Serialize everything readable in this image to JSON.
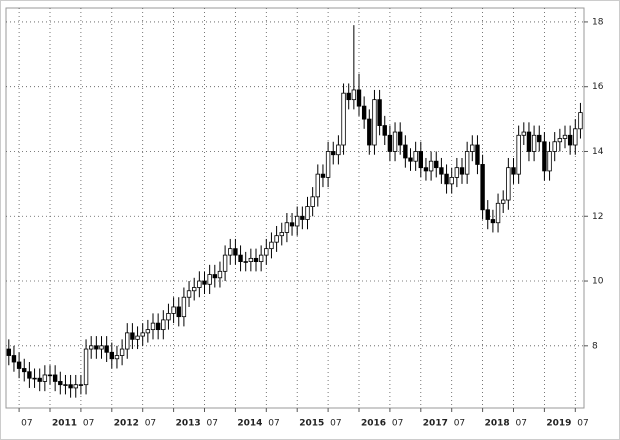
{
  "chart_data": {
    "type": "candlestick",
    "categories": [
      null,
      null,
      "07",
      null,
      null,
      null,
      null,
      null,
      "2011",
      null,
      null,
      null,
      null,
      null,
      "07",
      null,
      null,
      null,
      null,
      null,
      "2012",
      null,
      null,
      null,
      null,
      null,
      "07",
      null,
      null,
      null,
      null,
      null,
      "2013",
      null,
      null,
      null,
      null,
      null,
      "07",
      null,
      null,
      null,
      null,
      null,
      "2014",
      null,
      null,
      null,
      null,
      null,
      "07",
      null,
      null,
      null,
      null,
      null,
      "2015",
      null,
      null,
      null,
      null,
      null,
      "07",
      null,
      null,
      null,
      null,
      null,
      "2016",
      null,
      null,
      null,
      null,
      null,
      "07",
      null,
      null,
      null,
      null,
      null,
      "2017",
      null,
      null,
      null,
      null,
      null,
      "07",
      null,
      null,
      null,
      null,
      null,
      "2018",
      null,
      null,
      null,
      null,
      null,
      "07",
      null,
      null,
      null,
      null,
      null,
      "2019",
      null,
      null,
      null,
      null,
      null,
      "07",
      null
    ],
    "open": [
      7.9,
      7.7,
      7.5,
      7.3,
      7.2,
      7.0,
      7.0,
      6.9,
      7.1,
      7.1,
      6.9,
      6.8,
      6.8,
      6.7,
      6.8,
      6.8,
      7.9,
      8.0,
      7.9,
      8.0,
      7.8,
      7.6,
      7.7,
      7.9,
      8.4,
      8.2,
      8.3,
      8.4,
      8.5,
      8.7,
      8.5,
      8.8,
      9.0,
      9.2,
      8.9,
      9.5,
      9.7,
      9.8,
      10.0,
      9.9,
      10.2,
      10.1,
      10.3,
      10.8,
      11.0,
      10.8,
      10.6,
      10.6,
      10.7,
      10.6,
      10.8,
      11.0,
      11.2,
      11.4,
      11.5,
      11.8,
      11.7,
      12.0,
      11.9,
      12.3,
      12.6,
      13.3,
      13.2,
      14.0,
      13.9,
      14.2,
      15.8,
      15.6,
      15.9,
      15.4,
      15.0,
      14.2,
      15.6,
      14.8,
      14.5,
      14.0,
      14.6,
      14.2,
      13.8,
      13.7,
      14.0,
      13.5,
      13.4,
      13.7,
      13.5,
      13.3,
      13.0,
      13.2,
      13.5,
      13.3,
      14.0,
      14.2,
      13.6,
      12.2,
      11.9,
      11.8,
      12.4,
      12.5,
      13.5,
      13.3,
      14.5,
      14.6,
      14.0,
      14.5,
      14.3,
      13.4,
      14.0,
      14.3,
      14.4,
      14.5,
      14.2,
      14.7
    ],
    "high": [
      8.2,
      8.0,
      7.8,
      7.6,
      7.5,
      7.3,
      7.3,
      7.4,
      7.4,
      7.4,
      7.2,
      7.1,
      7.1,
      7.1,
      7.1,
      8.2,
      8.3,
      8.3,
      8.3,
      8.3,
      8.1,
      8.0,
      8.2,
      8.7,
      8.7,
      8.6,
      8.7,
      8.8,
      9.0,
      9.0,
      9.1,
      9.3,
      9.5,
      9.5,
      9.8,
      10.0,
      10.1,
      10.3,
      10.3,
      10.5,
      10.5,
      10.6,
      11.1,
      11.3,
      11.3,
      11.1,
      10.9,
      11.0,
      11.0,
      11.1,
      11.3,
      11.5,
      11.7,
      11.8,
      12.1,
      12.1,
      12.3,
      12.3,
      12.6,
      12.9,
      13.6,
      13.6,
      14.3,
      14.3,
      14.5,
      16.1,
      16.1,
      17.9,
      16.4,
      15.7,
      15.3,
      15.9,
      15.9,
      15.1,
      14.8,
      14.9,
      14.9,
      14.5,
      14.1,
      14.3,
      14.3,
      13.8,
      14.0,
      14.0,
      13.8,
      13.6,
      13.5,
      13.8,
      13.8,
      14.3,
      14.5,
      14.5,
      13.9,
      12.5,
      12.2,
      12.7,
      12.8,
      13.8,
      13.8,
      14.8,
      14.9,
      14.9,
      14.8,
      14.8,
      14.6,
      14.3,
      14.6,
      14.7,
      14.8,
      14.8,
      15.0,
      15.5
    ],
    "low": [
      7.4,
      7.2,
      7.0,
      6.9,
      6.7,
      6.7,
      6.6,
      6.6,
      6.8,
      6.6,
      6.5,
      6.5,
      6.4,
      6.4,
      6.5,
      6.5,
      7.6,
      7.6,
      7.6,
      7.5,
      7.3,
      7.3,
      7.4,
      7.6,
      7.9,
      7.9,
      8.0,
      8.1,
      8.2,
      8.2,
      8.2,
      8.5,
      8.7,
      8.6,
      8.6,
      9.2,
      9.4,
      9.5,
      9.6,
      9.6,
      9.8,
      9.8,
      10.0,
      10.5,
      10.5,
      10.3,
      10.3,
      10.3,
      10.3,
      10.3,
      10.5,
      10.7,
      10.9,
      11.1,
      11.2,
      11.4,
      11.4,
      11.6,
      11.6,
      12.0,
      12.3,
      12.9,
      12.9,
      13.6,
      13.6,
      13.9,
      15.3,
      15.3,
      15.1,
      14.7,
      13.9,
      13.9,
      14.5,
      14.2,
      13.7,
      13.7,
      13.9,
      13.5,
      13.4,
      13.4,
      13.2,
      13.1,
      13.1,
      13.2,
      13.0,
      12.7,
      12.7,
      12.9,
      13.0,
      13.0,
      13.7,
      13.3,
      11.9,
      11.6,
      11.5,
      11.5,
      12.1,
      12.2,
      13.0,
      13.0,
      14.2,
      13.7,
      13.7,
      14.0,
      13.1,
      13.1,
      13.7,
      14.0,
      14.1,
      13.9,
      13.9,
      14.4
    ],
    "close": [
      7.7,
      7.5,
      7.3,
      7.2,
      7.0,
      7.0,
      6.9,
      7.1,
      7.1,
      6.9,
      6.8,
      6.8,
      6.7,
      6.8,
      6.8,
      7.9,
      8.0,
      7.9,
      8.0,
      7.8,
      7.6,
      7.7,
      7.9,
      8.4,
      8.2,
      8.3,
      8.4,
      8.5,
      8.7,
      8.5,
      8.8,
      9.0,
      9.2,
      8.9,
      9.5,
      9.7,
      9.8,
      10.0,
      9.9,
      10.2,
      10.1,
      10.3,
      10.8,
      11.0,
      10.8,
      10.6,
      10.6,
      10.7,
      10.6,
      10.8,
      11.0,
      11.2,
      11.4,
      11.5,
      11.8,
      11.7,
      12.0,
      11.9,
      12.3,
      12.6,
      13.3,
      13.2,
      14.0,
      13.9,
      14.2,
      15.8,
      15.6,
      15.9,
      15.4,
      15.0,
      14.2,
      15.6,
      14.8,
      14.5,
      14.0,
      14.6,
      14.2,
      13.8,
      13.7,
      14.0,
      13.5,
      13.4,
      13.7,
      13.5,
      13.3,
      13.0,
      13.2,
      13.5,
      13.3,
      14.0,
      14.2,
      13.6,
      12.2,
      11.9,
      11.8,
      12.4,
      12.5,
      13.5,
      13.3,
      14.5,
      14.6,
      14.0,
      14.5,
      14.3,
      13.4,
      14.0,
      14.3,
      14.4,
      14.5,
      14.2,
      14.7,
      15.2
    ],
    "up_color": "#ffffff",
    "down_color": "#000000",
    "ylim": [
      6.08,
      18.43
    ],
    "yticks": [
      8,
      10,
      12,
      14,
      16,
      18
    ],
    "grid": true
  }
}
